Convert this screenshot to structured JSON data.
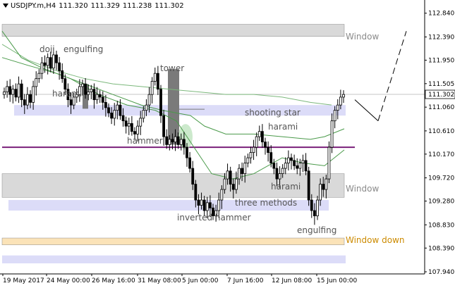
{
  "header": {
    "symbol": "USDJPY.m,H4",
    "open": "111.320",
    "high": "111.329",
    "low": "111.238",
    "close": "111.302"
  },
  "current_price_label": "111.302",
  "colors": {
    "background": "#ffffff",
    "candle": "#000000",
    "ma_fast": "#4a9a4a",
    "ma_slow": "#7cb87c",
    "level_line": "#7a1f7a",
    "window_zone": "#d9d9d9",
    "window_label": "#8a8a8a",
    "blue_zone": "#dcdcf8",
    "window_down_zone": "#fbe3b8",
    "window_down_label": "#cc8a00",
    "annotation_text": "#555555",
    "highlight_box": "#7a7a7a",
    "highlight_ellipse": "#bfe3bf",
    "price_line": "#b0b0b0"
  },
  "chart_data": {
    "type": "candlestick",
    "title": "",
    "ylim": [
      107.9,
      113.05
    ],
    "y_ticks": [
      "112.840",
      "112.390",
      "111.950",
      "111.505",
      "111.060",
      "110.610",
      "110.170",
      "109.720",
      "109.280",
      "108.830",
      "108.390",
      "107.940"
    ],
    "x_ticks": [
      "19 May 2017",
      "24 May 00:00",
      "26 May 16:00",
      "31 May 08:00",
      "5 Jun 00:00",
      "7 Jun 16:00",
      "12 Jun 08:00",
      "15 Jun 00:00"
    ],
    "level_line": 110.3,
    "zones": [
      {
        "label": "Window",
        "from": 112.4,
        "to": 112.63
      },
      {
        "label": "",
        "from": 110.9,
        "to": 111.1
      },
      {
        "label": "Window",
        "from": 109.35,
        "to": 109.8
      },
      {
        "label": "",
        "from": 109.1,
        "to": 109.3
      },
      {
        "label": "Window down",
        "from": 108.45,
        "to": 108.58
      },
      {
        "label": "",
        "from": 108.1,
        "to": 108.25
      }
    ],
    "patterns": [
      {
        "label": "doji",
        "price": 112.2
      },
      {
        "label": "engulfing",
        "price": 112.2
      },
      {
        "label": "harami",
        "price": 111.35
      },
      {
        "label": "tower",
        "price": 111.8
      },
      {
        "label": "hammer",
        "price": 110.45
      },
      {
        "label": "shooting star",
        "price": 110.96
      },
      {
        "label": "harami",
        "price": 110.7
      },
      {
        "label": "harami",
        "price": 109.55
      },
      {
        "label": "three methods",
        "price": 109.25
      },
      {
        "label": "inverted hammer",
        "price": 108.95
      },
      {
        "label": "engulfing",
        "price": 108.72
      }
    ],
    "forecast": [
      111.2,
      110.8,
      112.5
    ]
  }
}
